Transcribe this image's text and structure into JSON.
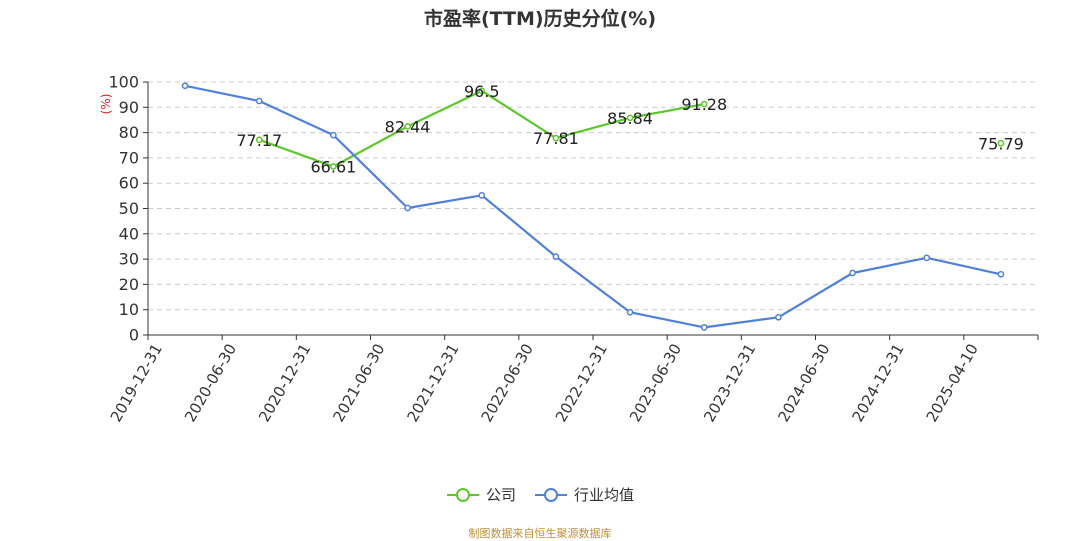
{
  "title": "市盈率(TTM)历史分位(%)",
  "source": "制图数据来自恒生聚源数据库",
  "colors": {
    "company": "#5cc72a",
    "industry": "#4f81d9",
    "unit": "#e02020"
  },
  "chart_data": {
    "type": "line",
    "title": "市盈率(TTM)历史分位(%)",
    "ylabel": "(%)",
    "ylim": [
      0,
      100
    ],
    "yticks": [
      0,
      10,
      20,
      30,
      40,
      50,
      60,
      70,
      80,
      90,
      100
    ],
    "grid": true,
    "legend_position": "bottom-center",
    "categories": [
      "2019-12-31",
      "2020-06-30",
      "2020-12-31",
      "2021-06-30",
      "2021-12-31",
      "2022-06-30",
      "2022-12-31",
      "2023-06-30",
      "2023-12-31",
      "2024-06-30",
      "2024-12-31",
      "2025-04-10"
    ],
    "series": [
      {
        "name": "公司",
        "color": "#5cc72a",
        "show_labels": true,
        "values": [
          null,
          77.17,
          66.61,
          82.44,
          96.5,
          77.81,
          85.84,
          91.28,
          null,
          null,
          null,
          75.79
        ],
        "labels": [
          null,
          "77.17",
          "66.61",
          "82.44",
          "96.5",
          "77.81",
          "85.84",
          "91.28",
          null,
          null,
          null,
          "75.79"
        ]
      },
      {
        "name": "行业均值",
        "color": "#4f81d9",
        "show_labels": false,
        "values": [
          98.5,
          92.5,
          79,
          50.2,
          55.2,
          31,
          9,
          3,
          7,
          24.5,
          30.5,
          24
        ]
      }
    ]
  }
}
